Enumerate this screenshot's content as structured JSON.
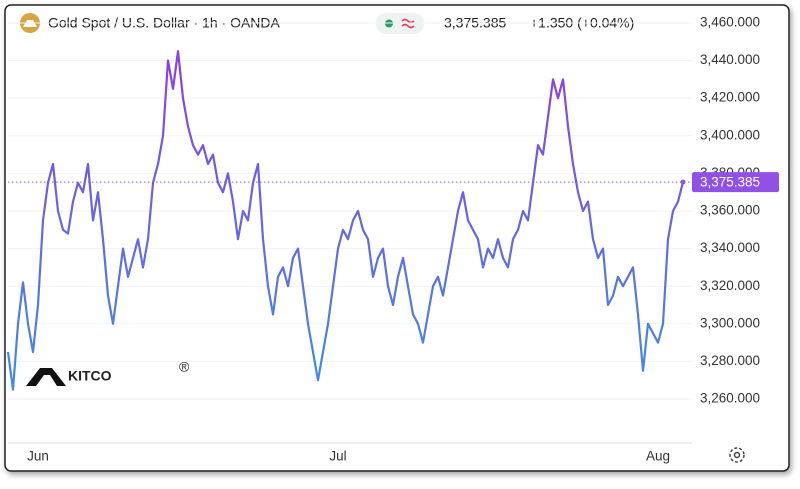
{
  "chart_data": {
    "type": "line",
    "title": "Gold Spot / U.S. Dollar · 1h · OANDA",
    "last_price_label": "3,375.385",
    "change_label": "+1.350 (+0.04%)",
    "watermark": "KITCO",
    "watermark_mark": "®",
    "gradient_colors": [
      "#8c3fe6",
      "#3d8fe8"
    ],
    "price_color": "#9251e6",
    "grid": true,
    "ylim": [
      3238.2,
      3466.9
    ],
    "yticks": [
      {
        "value": 3260,
        "label": "3,260.000"
      },
      {
        "value": 3280,
        "label": "3,280.000"
      },
      {
        "value": 3300,
        "label": "3,300.000"
      },
      {
        "value": 3320,
        "label": "3,320.000"
      },
      {
        "value": 3340,
        "label": "3,340.000"
      },
      {
        "value": 3360,
        "label": "3,360.000"
      },
      {
        "value": 3380,
        "label": "3,380.000"
      },
      {
        "value": 3400,
        "label": "3,400.000"
      },
      {
        "value": 3420,
        "label": "3,420.000"
      },
      {
        "value": 3440,
        "label": "3,440.000"
      },
      {
        "value": 3460,
        "label": "3,460.000"
      }
    ],
    "categories": [
      null,
      null,
      null,
      null,
      null,
      null,
      "Jun",
      null,
      null,
      null,
      null,
      null,
      null,
      null,
      null,
      null,
      null,
      null,
      null,
      null,
      null,
      null,
      null,
      null,
      null,
      null,
      null,
      null,
      null,
      null,
      null,
      null,
      null,
      null,
      null,
      null,
      null,
      null,
      null,
      null,
      null,
      null,
      null,
      null,
      null,
      null,
      null,
      null,
      null,
      null,
      null,
      null,
      null,
      null,
      null,
      null,
      null,
      null,
      null,
      null,
      null,
      null,
      null,
      null,
      null,
      null,
      "Jul",
      null,
      null,
      null,
      null,
      null,
      null,
      null,
      null,
      null,
      null,
      null,
      null,
      null,
      null,
      null,
      null,
      null,
      null,
      null,
      null,
      null,
      null,
      null,
      null,
      null,
      null,
      null,
      null,
      null,
      null,
      null,
      null,
      null,
      null,
      null,
      null,
      null,
      null,
      null,
      null,
      null,
      null,
      null,
      null,
      null,
      null,
      null,
      null,
      null,
      null,
      null,
      null,
      null,
      null,
      null,
      null,
      null,
      null,
      null,
      null,
      null,
      null,
      null,
      "Aug",
      null,
      null,
      null,
      null,
      null
    ],
    "values": [
      3285,
      3265,
      3300,
      3322,
      3300,
      3285,
      3310,
      3355,
      3375,
      3385,
      3360,
      3350,
      3348,
      3365,
      3375,
      3370,
      3385,
      3355,
      3370,
      3345,
      3315,
      3300,
      3320,
      3340,
      3325,
      3335,
      3345,
      3330,
      3345,
      3375,
      3385,
      3400,
      3440,
      3425,
      3445,
      3420,
      3405,
      3395,
      3390,
      3395,
      3385,
      3390,
      3375,
      3370,
      3380,
      3365,
      3345,
      3360,
      3355,
      3375,
      3385,
      3345,
      3320,
      3305,
      3325,
      3330,
      3320,
      3335,
      3340,
      3320,
      3300,
      3285,
      3270,
      3285,
      3300,
      3320,
      3340,
      3350,
      3345,
      3355,
      3360,
      3350,
      3345,
      3325,
      3335,
      3340,
      3320,
      3310,
      3325,
      3335,
      3320,
      3305,
      3300,
      3290,
      3305,
      3320,
      3325,
      3315,
      3330,
      3345,
      3360,
      3370,
      3355,
      3350,
      3345,
      3330,
      3340,
      3335,
      3345,
      3335,
      3330,
      3345,
      3350,
      3360,
      3355,
      3375,
      3395,
      3390,
      3410,
      3430,
      3420,
      3430,
      3405,
      3385,
      3370,
      3360,
      3365,
      3345,
      3335,
      3340,
      3310,
      3315,
      3325,
      3320,
      3325,
      3330,
      3305,
      3275,
      3300,
      3295,
      3290,
      3300,
      3345,
      3360,
      3365,
      3375.385
    ]
  }
}
